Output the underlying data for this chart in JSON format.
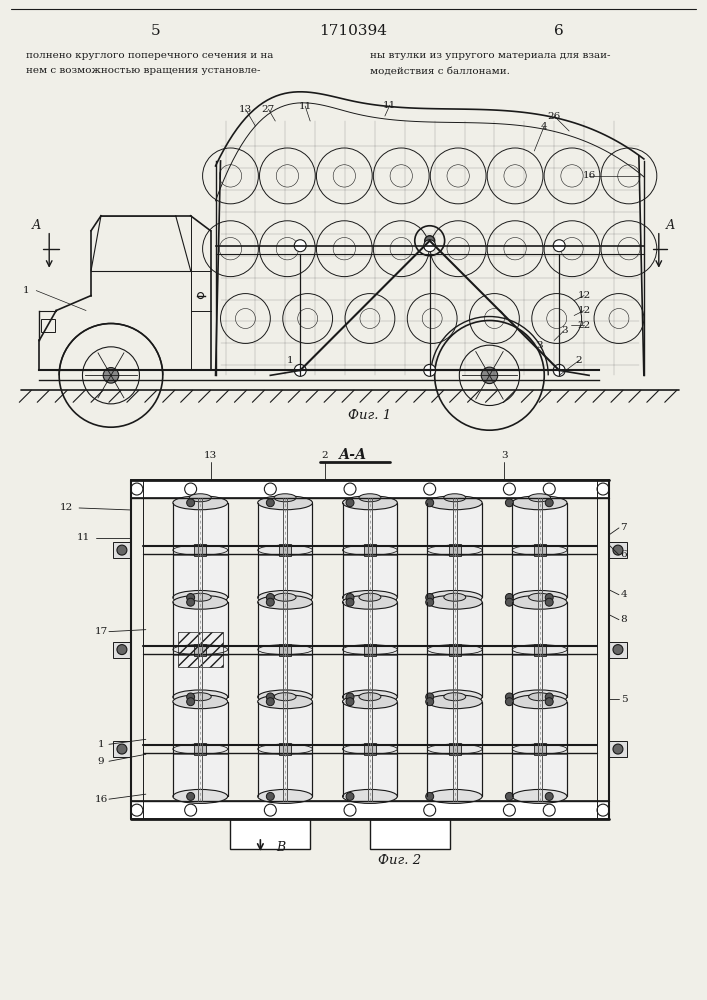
{
  "page_number_left": "5",
  "patent_number": "1710394",
  "page_number_right": "6",
  "header_text_left": "полнено круглого поперечного сечения и на\nнем с возможностью вращения установле-",
  "header_text_right": "ны втулки из упругого материала для взаи-\nмодействия с баллонами.",
  "fig1_caption": "Фиг. 1",
  "fig2_caption": "Фиг. 2",
  "section_label": "А-А",
  "background_color": "#f0efe8",
  "line_color": "#1a1a1a",
  "text_color": "#1a1a1a"
}
